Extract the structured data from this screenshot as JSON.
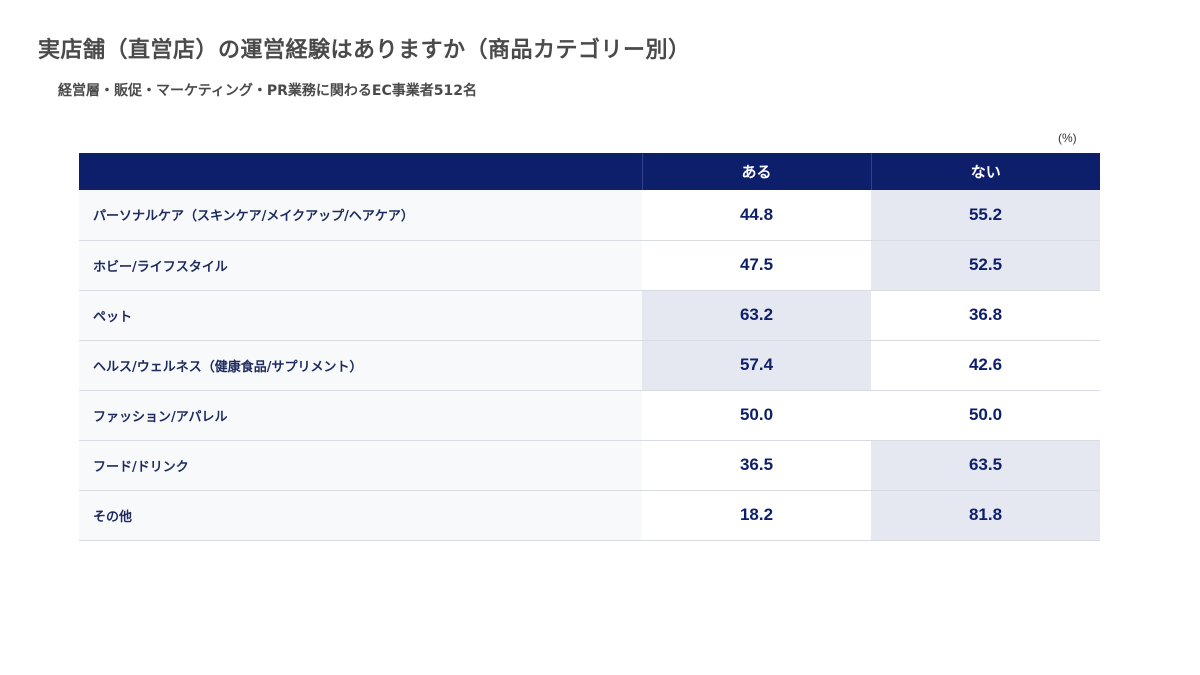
{
  "title": "実店舗（直営店）の運営経験はありますか（商品カテゴリー別）",
  "subtitle": "経営層・販促・マーケティング・PR業務に関わるEC事業者512名",
  "unit": "(%)",
  "chart_data": {
    "type": "table",
    "columns": [
      "ある",
      "ない"
    ],
    "rows": [
      {
        "category": "パーソナルケア（スキンケア/メイクアップ/ヘアケア）",
        "values": [
          "44.8",
          "55.2"
        ]
      },
      {
        "category": "ホビー/ライフスタイル",
        "values": [
          "47.5",
          "52.5"
        ]
      },
      {
        "category": "ペット",
        "values": [
          "63.2",
          "36.8"
        ]
      },
      {
        "category": "ヘルス/ウェルネス（健康食品/サプリメント）",
        "values": [
          "57.4",
          "42.6"
        ]
      },
      {
        "category": "ファッション/アパレル",
        "values": [
          "50.0",
          "50.0"
        ]
      },
      {
        "category": "フード/ドリンク",
        "values": [
          "36.5",
          "63.5"
        ]
      },
      {
        "category": "その他",
        "values": [
          "18.2",
          "81.8"
        ]
      }
    ]
  },
  "colors": {
    "header_bg": "#0d1f6b",
    "highlight_bg": "#e6e8f1",
    "value_text": "#0d1f6b",
    "title_text": "#4a4a4a"
  }
}
